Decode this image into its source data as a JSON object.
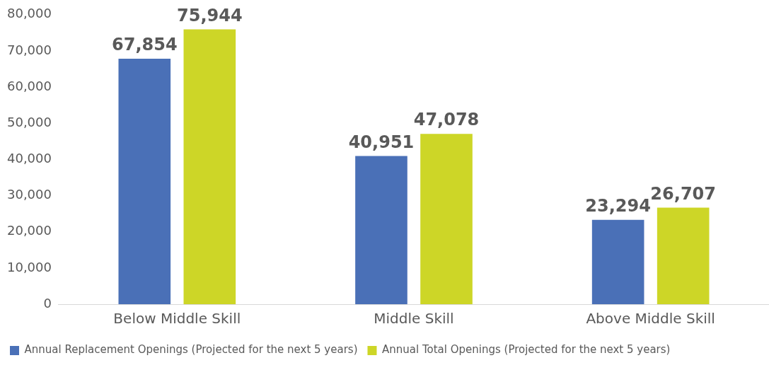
{
  "chart_data": {
    "type": "bar",
    "categories": [
      "Below Middle Skill",
      "Middle Skill",
      "Above Middle Skill"
    ],
    "series": [
      {
        "name": "Annual Replacement Openings (Projected for the next 5 years)",
        "color": "#4a70b7",
        "values": [
          67854,
          40951,
          23294
        ],
        "value_labels": [
          "67,854",
          "40,951",
          "23,294"
        ]
      },
      {
        "name": "Annual Total Openings (Projected for the next 5 years)",
        "color": "#cdd627",
        "values": [
          75944,
          47078,
          26707
        ],
        "value_labels": [
          "75,944",
          "47,078",
          "26,707"
        ]
      }
    ],
    "ylim": [
      0,
      80000
    ],
    "yticks": [
      {
        "value": 0,
        "label": "0"
      },
      {
        "value": 10000,
        "label": "10,000"
      },
      {
        "value": 20000,
        "label": "20,000"
      },
      {
        "value": 30000,
        "label": "30,000"
      },
      {
        "value": 40000,
        "label": "40,000"
      },
      {
        "value": 50000,
        "label": "50,000"
      },
      {
        "value": 60000,
        "label": "60,000"
      },
      {
        "value": 70000,
        "label": "70,000"
      },
      {
        "value": 80000,
        "label": "80,000"
      }
    ],
    "grid": false,
    "legend": "bottom"
  }
}
